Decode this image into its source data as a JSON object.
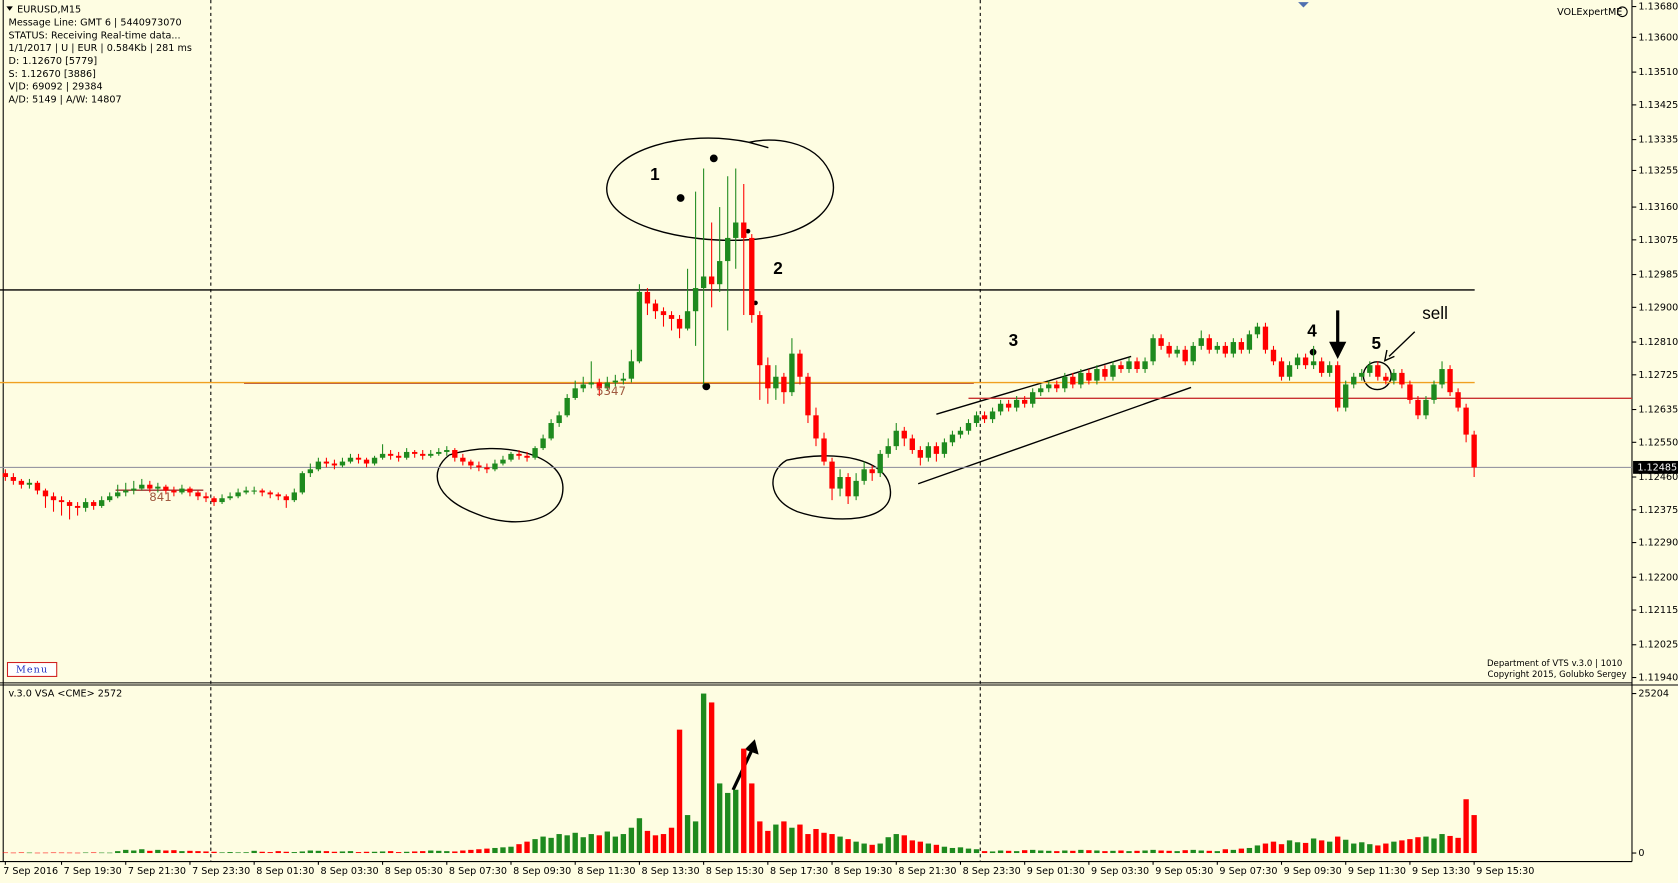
{
  "header": {
    "symbol": "EURUSD,M15",
    "info": [
      "Message Line: GMT 6 | 5440973070",
      "STATUS:  Receiving Real-time data...",
      "1/1/2017 | U | EUR | 0.584Kb | 281 ms",
      "D: 1.12670  [5779]",
      "S: 1.12670  [3886]",
      "V|D: 69092 | 29384",
      "A/D: 5149 | A/W: 14807"
    ],
    "indicator": "VOLExpertME",
    "menu": "Menu",
    "credits": [
      "Department of VTS  v.3.0 | 1010",
      "Copyright 2015, Golubko Sergey"
    ],
    "volume_title": "v.3.0 VSA <CME> 2572"
  },
  "chart_data": {
    "type": "candlestick",
    "categories": [
      "7 Sep 2016",
      null,
      null,
      null,
      null,
      null,
      null,
      "7 Sep 19:30",
      null,
      null,
      null,
      null,
      null,
      null,
      null,
      "7 Sep 21:30",
      null,
      null,
      null,
      null,
      null,
      null,
      null,
      "7 Sep 23:30",
      null,
      null,
      null,
      null,
      null,
      null,
      null,
      "8 Sep 01:30",
      null,
      null,
      null,
      null,
      null,
      null,
      null,
      "8 Sep 03:30",
      null,
      null,
      null,
      null,
      null,
      null,
      null,
      "8 Sep 05:30",
      null,
      null,
      null,
      null,
      null,
      null,
      null,
      "8 Sep 07:30",
      null,
      null,
      null,
      null,
      null,
      null,
      null,
      "8 Sep 09:30",
      null,
      null,
      null,
      null,
      null,
      null,
      null,
      "8 Sep 11:30",
      null,
      null,
      null,
      null,
      null,
      null,
      null,
      "8 Sep 13:30",
      null,
      null,
      null,
      null,
      null,
      null,
      null,
      "8 Sep 15:30",
      null,
      null,
      null,
      null,
      null,
      null,
      null,
      "8 Sep 17:30",
      null,
      null,
      null,
      null,
      null,
      null,
      null,
      "8 Sep 19:30",
      null,
      null,
      null,
      null,
      null,
      null,
      null,
      "8 Sep 21:30",
      null,
      null,
      null,
      null,
      null,
      null,
      null,
      "8 Sep 23:30",
      null,
      null,
      null,
      null,
      null,
      null,
      null,
      "9 Sep 01:30",
      null,
      null,
      null,
      null,
      null,
      null,
      null,
      "9 Sep 03:30",
      null,
      null,
      null,
      null,
      null,
      null,
      null,
      "9 Sep 05:30",
      null,
      null,
      null,
      null,
      null,
      null,
      null,
      "9 Sep 07:30",
      null,
      null,
      null,
      null,
      null,
      null,
      null,
      "9 Sep 09:30",
      null,
      null,
      null,
      null,
      null,
      null,
      null,
      "9 Sep 11:30",
      null,
      null,
      null,
      null,
      null,
      null,
      null,
      "9 Sep 13:30",
      null,
      null,
      null,
      null,
      null,
      null,
      null,
      "9 Sep 15:30"
    ],
    "open": [
      1.1247,
      1.1246,
      1.1245,
      1.1244,
      1.12445,
      1.12425,
      1.1241,
      1.124,
      1.12395,
      1.12385,
      1.1238,
      1.12395,
      1.12385,
      1.124,
      1.1241,
      1.1242,
      1.12425,
      1.1243,
      1.1244,
      1.1243,
      1.12435,
      1.12425,
      1.1242,
      1.1243,
      1.1242,
      1.1241,
      1.12405,
      1.12395,
      1.12405,
      1.1241,
      1.1242,
      1.12425,
      1.12425,
      1.1242,
      1.12415,
      1.1241,
      1.124,
      1.1242,
      1.1247,
      1.1248,
      1.125,
      1.12495,
      1.1249,
      1.125,
      1.1251,
      1.12505,
      1.12495,
      1.1251,
      1.1252,
      1.12515,
      1.1251,
      1.12525,
      1.1252,
      1.12515,
      1.1252,
      1.12525,
      1.1253,
      1.1251,
      1.125,
      1.1249,
      1.12485,
      1.1248,
      1.12495,
      1.12505,
      1.1252,
      1.12515,
      1.1251,
      1.12535,
      1.1256,
      1.126,
      1.1262,
      1.12665,
      1.1269,
      1.127,
      1.12705,
      1.1269,
      1.12705,
      1.1271,
      1.12715,
      1.1276,
      1.1294,
      1.1291,
      1.1289,
      1.1288,
      1.1287,
      1.12845,
      1.1289,
      1.1295,
      1.1298,
      1.1296,
      1.1302,
      1.1308,
      1.1312,
      1.1308,
      1.1288,
      1.1275,
      1.1269,
      1.1272,
      1.1268,
      1.1278,
      1.1272,
      1.1262,
      1.1256,
      1.125,
      1.1243,
      1.1246,
      1.1241,
      1.1245,
      1.1248,
      1.1247,
      1.1252,
      1.1254,
      1.1258,
      1.1256,
      1.1253,
      1.1251,
      1.1254,
      1.1252,
      1.1255,
      1.1257,
      1.1258,
      1.126,
      1.1262,
      1.1261,
      1.1263,
      1.1265,
      1.1264,
      1.1266,
      1.1265,
      1.1268,
      1.1269,
      1.127,
      1.1269,
      1.1272,
      1.127,
      1.1273,
      1.1271,
      1.1274,
      1.1272,
      1.1275,
      1.1274,
      1.1276,
      1.1274,
      1.1276,
      1.1282,
      1.128,
      1.1278,
      1.1279,
      1.1276,
      1.128,
      1.1282,
      1.1279,
      1.128,
      1.1278,
      1.1281,
      1.1279,
      1.1283,
      1.1285,
      1.1279,
      1.1276,
      1.1272,
      1.1275,
      1.1277,
      1.1275,
      1.1276,
      1.1273,
      1.1275,
      1.1264,
      1.127,
      1.1272,
      1.1273,
      1.1275,
      1.1272,
      1.1271,
      1.1273,
      1.127,
      1.1266,
      1.1262,
      1.1266,
      1.127,
      1.1274,
      1.1268,
      1.1264,
      1.1257
    ],
    "high": [
      1.1248,
      1.1247,
      1.12455,
      1.12455,
      1.1245,
      1.1243,
      1.1242,
      1.1241,
      1.124,
      1.12395,
      1.12405,
      1.124,
      1.1241,
      1.1242,
      1.1244,
      1.12445,
      1.1245,
      1.12455,
      1.1245,
      1.12445,
      1.1244,
      1.12435,
      1.1244,
      1.12435,
      1.12425,
      1.1242,
      1.1241,
      1.12415,
      1.1242,
      1.1243,
      1.12435,
      1.12435,
      1.1243,
      1.12425,
      1.1242,
      1.12415,
      1.1243,
      1.12475,
      1.12495,
      1.1251,
      1.1251,
      1.12505,
      1.1251,
      1.1252,
      1.1252,
      1.1251,
      1.12515,
      1.12545,
      1.1253,
      1.12525,
      1.12535,
      1.1253,
      1.1253,
      1.1253,
      1.12535,
      1.1254,
      1.12535,
      1.1252,
      1.12505,
      1.125,
      1.12495,
      1.12505,
      1.12515,
      1.12525,
      1.1253,
      1.12525,
      1.1254,
      1.1257,
      1.1261,
      1.1263,
      1.12675,
      1.1271,
      1.1272,
      1.1276,
      1.12715,
      1.1272,
      1.12725,
      1.1273,
      1.1279,
      1.1296,
      1.1295,
      1.1292,
      1.129,
      1.1289,
      1.1288,
      1.13,
      1.132,
      1.1326,
      1.1312,
      1.1316,
      1.1324,
      1.1326,
      1.1322,
      1.1309,
      1.1289,
      1.1277,
      1.1275,
      1.1273,
      1.1282,
      1.1279,
      1.1273,
      1.1264,
      1.12575,
      1.1251,
      1.1248,
      1.1247,
      1.1247,
      1.125,
      1.1249,
      1.1253,
      1.1256,
      1.126,
      1.1259,
      1.1257,
      1.1254,
      1.1255,
      1.1255,
      1.1256,
      1.1258,
      1.1259,
      1.1261,
      1.1263,
      1.1263,
      1.1264,
      1.1266,
      1.1266,
      1.1267,
      1.1267,
      1.1269,
      1.127,
      1.1271,
      1.1271,
      1.1273,
      1.1273,
      1.1274,
      1.1274,
      1.1275,
      1.1275,
      1.1276,
      1.1276,
      1.1277,
      1.1277,
      1.1277,
      1.1283,
      1.1283,
      1.1281,
      1.128,
      1.128,
      1.1281,
      1.1284,
      1.1283,
      1.1281,
      1.1281,
      1.1282,
      1.1282,
      1.1284,
      1.1286,
      1.1286,
      1.128,
      1.1277,
      1.1276,
      1.1278,
      1.1278,
      1.128,
      1.1277,
      1.1276,
      1.1276,
      1.1271,
      1.1273,
      1.1274,
      1.1276,
      1.1276,
      1.1273,
      1.1274,
      1.1274,
      1.1271,
      1.1267,
      1.1267,
      1.1271,
      1.1276,
      1.1275,
      1.1269,
      1.1265,
      1.1258
    ],
    "low": [
      1.1245,
      1.1244,
      1.1243,
      1.1243,
      1.12415,
      1.1238,
      1.1237,
      1.1236,
      1.1235,
      1.1236,
      1.1237,
      1.12375,
      1.1238,
      1.12395,
      1.12405,
      1.1241,
      1.12415,
      1.12425,
      1.1242,
      1.1242,
      1.12415,
      1.1241,
      1.12415,
      1.1241,
      1.124,
      1.12395,
      1.12385,
      1.1239,
      1.124,
      1.12405,
      1.12415,
      1.12415,
      1.1241,
      1.12405,
      1.124,
      1.1238,
      1.12395,
      1.12415,
      1.1246,
      1.12475,
      1.12485,
      1.1248,
      1.12485,
      1.12495,
      1.12495,
      1.12485,
      1.1249,
      1.12505,
      1.12505,
      1.125,
      1.12505,
      1.1251,
      1.12505,
      1.1251,
      1.12515,
      1.12515,
      1.125,
      1.1249,
      1.1248,
      1.12475,
      1.1247,
      1.12475,
      1.1249,
      1.125,
      1.12505,
      1.125,
      1.12505,
      1.1253,
      1.12555,
      1.1259,
      1.12615,
      1.1266,
      1.1268,
      1.1269,
      1.1267,
      1.12685,
      1.12695,
      1.127,
      1.12705,
      1.12755,
      1.1288,
      1.1287,
      1.1285,
      1.1284,
      1.1282,
      1.1284,
      1.128,
      1.127,
      1.129,
      1.1294,
      1.1284,
      1.13,
      1.1288,
      1.1286,
      1.1266,
      1.1265,
      1.1266,
      1.1265,
      1.1267,
      1.127,
      1.126,
      1.1254,
      1.1249,
      1.124,
      1.1241,
      1.1239,
      1.124,
      1.1244,
      1.1245,
      1.1246,
      1.1251,
      1.1253,
      1.1254,
      1.1252,
      1.1249,
      1.125,
      1.125,
      1.1251,
      1.1254,
      1.1256,
      1.1257,
      1.1259,
      1.126,
      1.126,
      1.1262,
      1.1263,
      1.1263,
      1.1264,
      1.1264,
      1.1267,
      1.1268,
      1.1268,
      1.1268,
      1.1269,
      1.1269,
      1.127,
      1.127,
      1.1271,
      1.1271,
      1.1273,
      1.1273,
      1.1273,
      1.1273,
      1.1275,
      1.1279,
      1.1277,
      1.1277,
      1.1275,
      1.1275,
      1.1279,
      1.1278,
      1.1278,
      1.1277,
      1.1277,
      1.1278,
      1.1278,
      1.1282,
      1.1278,
      1.1275,
      1.1271,
      1.1271,
      1.1274,
      1.1274,
      1.1274,
      1.1272,
      1.1272,
      1.1263,
      1.1263,
      1.1269,
      1.1271,
      1.1272,
      1.1271,
      1.127,
      1.127,
      1.1269,
      1.1265,
      1.1261,
      1.1261,
      1.1265,
      1.1269,
      1.1267,
      1.1263,
      1.1255,
      1.1246
    ],
    "close": [
      1.1246,
      1.1245,
      1.1244,
      1.12445,
      1.12425,
      1.1241,
      1.124,
      1.12395,
      1.12385,
      1.1238,
      1.12395,
      1.12385,
      1.124,
      1.1241,
      1.1242,
      1.12425,
      1.1243,
      1.1244,
      1.1243,
      1.12435,
      1.12425,
      1.1242,
      1.1243,
      1.1242,
      1.1241,
      1.12405,
      1.12395,
      1.12405,
      1.1241,
      1.1242,
      1.12425,
      1.12425,
      1.1242,
      1.12415,
      1.1241,
      1.124,
      1.1242,
      1.1247,
      1.1248,
      1.125,
      1.12495,
      1.1249,
      1.125,
      1.1251,
      1.12505,
      1.12495,
      1.1251,
      1.1252,
      1.12515,
      1.1251,
      1.12525,
      1.1252,
      1.12515,
      1.1252,
      1.12525,
      1.1253,
      1.1251,
      1.125,
      1.1249,
      1.12485,
      1.1248,
      1.12495,
      1.12505,
      1.1252,
      1.12515,
      1.1251,
      1.12535,
      1.1256,
      1.126,
      1.1262,
      1.12665,
      1.1269,
      1.127,
      1.12705,
      1.1269,
      1.12705,
      1.1271,
      1.12715,
      1.1276,
      1.1294,
      1.1291,
      1.1289,
      1.1288,
      1.1287,
      1.12845,
      1.1289,
      1.1295,
      1.1298,
      1.1296,
      1.1302,
      1.1308,
      1.1312,
      1.1308,
      1.1288,
      1.1275,
      1.1269,
      1.1272,
      1.1268,
      1.1278,
      1.1272,
      1.1262,
      1.1256,
      1.125,
      1.1243,
      1.1246,
      1.1241,
      1.1245,
      1.1248,
      1.1247,
      1.1252,
      1.1254,
      1.1258,
      1.1256,
      1.1253,
      1.1251,
      1.1254,
      1.1252,
      1.1255,
      1.1257,
      1.1258,
      1.126,
      1.1262,
      1.1261,
      1.1263,
      1.1265,
      1.1264,
      1.1266,
      1.1265,
      1.1268,
      1.1269,
      1.127,
      1.1269,
      1.1272,
      1.127,
      1.1273,
      1.1271,
      1.1274,
      1.1272,
      1.1275,
      1.1274,
      1.1276,
      1.1274,
      1.1276,
      1.1282,
      1.128,
      1.1278,
      1.1279,
      1.1276,
      1.128,
      1.1282,
      1.1279,
      1.128,
      1.1278,
      1.1281,
      1.1279,
      1.1283,
      1.1285,
      1.1279,
      1.1276,
      1.1272,
      1.1275,
      1.1277,
      1.1275,
      1.1276,
      1.1273,
      1.1275,
      1.1264,
      1.127,
      1.1272,
      1.1273,
      1.1275,
      1.1272,
      1.1271,
      1.1273,
      1.127,
      1.1266,
      1.1262,
      1.1266,
      1.127,
      1.1274,
      1.1268,
      1.1264,
      1.1257,
      1.12485
    ],
    "volume": [
      80,
      60,
      90,
      70,
      50,
      60,
      80,
      70,
      60,
      50,
      80,
      90,
      70,
      60,
      300,
      500,
      400,
      600,
      350,
      500,
      400,
      450,
      300,
      350,
      300,
      250,
      200,
      100,
      150,
      100,
      120,
      350,
      200,
      150,
      300,
      200,
      150,
      250,
      400,
      350,
      300,
      200,
      250,
      300,
      150,
      200,
      200,
      250,
      300,
      150,
      200,
      250,
      300,
      400,
      350,
      300,
      250,
      400,
      500,
      600,
      700,
      800,
      900,
      1000,
      1400,
      1800,
      2200,
      2600,
      2400,
      3000,
      2800,
      3200,
      2500,
      3000,
      2800,
      3400,
      2600,
      3000,
      4000,
      5500,
      3500,
      2800,
      3000,
      4000,
      19500,
      6000,
      5000,
      25204,
      23800,
      11000,
      9500,
      10000,
      16500,
      11000,
      5000,
      3500,
      4500,
      5000,
      4000,
      4500,
      3000,
      3800,
      3200,
      3000,
      2600,
      2200,
      1800,
      1500,
      1300,
      1500,
      2500,
      3000,
      2800,
      2000,
      1800,
      1500,
      1300,
      1000,
      800,
      900,
      700,
      600,
      300,
      250,
      400,
      350,
      300,
      450,
      500,
      400,
      350,
      300,
      400,
      350,
      500,
      450,
      400,
      300,
      350,
      400,
      300,
      350,
      400,
      500,
      400,
      350,
      300,
      450,
      500,
      400,
      350,
      300,
      600,
      500,
      700,
      800,
      1200,
      1500,
      1800,
      1400,
      2000,
      1700,
      1600,
      2300,
      2000,
      1800,
      2600,
      2100,
      1500,
      1700,
      1400,
      1200,
      1500,
      1800,
      2000,
      2200,
      2500,
      2600,
      2300,
      3000,
      2700,
      2400,
      8500,
      6000
    ],
    "up_color": "#1e8a1e",
    "down_color": "#ff0000",
    "ylim": [
      1.11929,
      1.13697
    ],
    "yticks": [
      {
        "value": 1.1368,
        "label": "1.13680"
      },
      {
        "value": 1.136,
        "label": "1.13600"
      },
      {
        "value": 1.1351,
        "label": "1.13510"
      },
      {
        "value": 1.13425,
        "label": "1.13425"
      },
      {
        "value": 1.13335,
        "label": "1.13335"
      },
      {
        "value": 1.13255,
        "label": "1.13255"
      },
      {
        "value": 1.1316,
        "label": "1.13160"
      },
      {
        "value": 1.13075,
        "label": "1.13075"
      },
      {
        "value": 1.12985,
        "label": "1.12985"
      },
      {
        "value": 1.129,
        "label": "1.12900"
      },
      {
        "value": 1.1281,
        "label": "1.12810"
      },
      {
        "value": 1.12725,
        "label": "1.12725"
      },
      {
        "value": 1.12635,
        "label": "1.12635"
      },
      {
        "value": 1.1255,
        "label": "1.12550"
      },
      {
        "value": 1.1246,
        "label": "1.12460"
      },
      {
        "value": 1.12375,
        "label": "1.12375"
      },
      {
        "value": 1.1229,
        "label": "1.12290"
      },
      {
        "value": 1.122,
        "label": "1.12200"
      },
      {
        "value": 1.12115,
        "label": "1.12115"
      },
      {
        "value": 1.12025,
        "label": "1.12025"
      },
      {
        "value": 1.1194,
        "label": "1.11940"
      }
    ],
    "current_price": {
      "value": 1.12485,
      "label": "1.12485"
    },
    "levels": [
      {
        "value": 1.12945,
        "color": "#000000"
      },
      {
        "value": 1.12705,
        "color": "#f0a020"
      },
      {
        "value": 1.12664,
        "color": "#c83232"
      }
    ],
    "volume_ylim": [
      0,
      25204
    ],
    "volume_yticks": [
      0,
      25204
    ],
    "annotations": [
      "1",
      "2",
      "3",
      "4",
      "5",
      "sell",
      "5347",
      "841"
    ]
  }
}
